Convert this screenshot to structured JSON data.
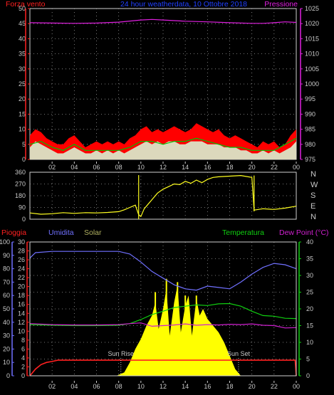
{
  "title": "24 hour weatherdata, 10 Ottobre 2018",
  "colors": {
    "wind": "#ff0000",
    "gust": "#ffffff",
    "wind_avg": "#00c000",
    "pressure": "#e020e0",
    "direction": "#ffff20",
    "rain": "#ff2020",
    "humidity": "#7070ff",
    "solar": "#ffff00",
    "temperature": "#10d010",
    "dewpoint": "#d020d0",
    "title": "#2040ff"
  },
  "x_ticks": [
    "02",
    "04",
    "06",
    "08",
    "10",
    "12",
    "14",
    "16",
    "18",
    "20",
    "22",
    "00"
  ],
  "chart_data": [
    {
      "type": "area",
      "id": "wind-pressure",
      "left_label": "Forza vento",
      "right_label": "Pressione",
      "x_range": [
        0,
        24
      ],
      "left_ticks": [
        "0",
        "5",
        "10",
        "15",
        "20",
        "25",
        "30",
        "35",
        "40",
        "45",
        "50"
      ],
      "right_ticks": [
        "975",
        "980",
        "985",
        "990",
        "995",
        "1000",
        "1005",
        "1010",
        "1015",
        "1020",
        "1025"
      ],
      "ylim_left": [
        0,
        50
      ],
      "ylim_right": [
        975,
        1025
      ],
      "grid": true,
      "series": [
        {
          "key": "wind",
          "x": [
            0,
            0.5,
            1,
            1.5,
            2,
            2.5,
            3,
            3.5,
            4,
            4.5,
            5,
            5.5,
            6,
            6.5,
            7,
            7.5,
            8,
            8.5,
            9,
            9.5,
            10,
            10.5,
            11,
            11.5,
            12,
            12.5,
            13,
            13.5,
            14,
            14.5,
            15,
            15.5,
            16,
            16.5,
            17,
            17.5,
            18,
            18.5,
            19,
            19.5,
            20,
            20.5,
            21,
            21.5,
            22,
            22.5,
            23,
            23.5,
            24
          ],
          "values": [
            8,
            10,
            9,
            7,
            6,
            5,
            5,
            7,
            8,
            6,
            4,
            5,
            6,
            5,
            6,
            5,
            6,
            5,
            7,
            8,
            10,
            11,
            9,
            10,
            9,
            10,
            11,
            10,
            9,
            10,
            12,
            11,
            10,
            9,
            10,
            8,
            7,
            8,
            7,
            6,
            5,
            4,
            6,
            5,
            6,
            4,
            5,
            8,
            10
          ]
        },
        {
          "key": "gust",
          "x": [
            0,
            0.5,
            1,
            1.5,
            2,
            2.5,
            3,
            3.5,
            4,
            4.5,
            5,
            5.5,
            6,
            6.5,
            7,
            7.5,
            8,
            8.5,
            9,
            9.5,
            10,
            10.5,
            11,
            11.5,
            12,
            12.5,
            13,
            13.5,
            14,
            14.5,
            15,
            15.5,
            16,
            16.5,
            17,
            17.5,
            18,
            18.5,
            19,
            19.5,
            20,
            20.5,
            21,
            21.5,
            22,
            22.5,
            23,
            23.5,
            24
          ],
          "values": [
            4,
            6,
            5,
            4,
            3,
            2,
            2,
            3,
            4,
            3,
            2,
            2,
            3,
            2,
            3,
            2,
            3,
            2,
            3,
            4,
            5,
            6,
            5,
            6,
            5,
            6,
            6,
            5,
            5,
            6,
            6,
            6,
            5,
            5,
            5,
            4,
            4,
            4,
            3,
            3,
            2,
            2,
            3,
            2,
            3,
            2,
            3,
            4,
            6
          ]
        },
        {
          "key": "wind_avg",
          "x": [
            0,
            1,
            2,
            3,
            4,
            5,
            6,
            7,
            8,
            9,
            10,
            11,
            12,
            13,
            14,
            15,
            16,
            17,
            18,
            19,
            20,
            21,
            22,
            23,
            24
          ],
          "values": [
            5,
            6,
            4,
            3,
            5,
            3,
            3,
            3,
            3,
            4,
            6,
            6,
            5,
            6,
            6,
            7,
            6,
            5,
            4,
            4,
            3,
            3,
            3,
            5,
            7
          ]
        },
        {
          "key": "pressure",
          "axis": "right",
          "x": [
            0,
            2,
            4,
            6,
            8,
            10,
            11,
            12,
            14,
            16,
            18,
            20,
            21,
            22,
            23,
            24
          ],
          "values": [
            1020.3,
            1020.2,
            1020.1,
            1020.2,
            1020.5,
            1021.2,
            1021.4,
            1021.2,
            1020.8,
            1020.6,
            1020.3,
            1020.1,
            1020.1,
            1020.3,
            1020.6,
            1020.4
          ]
        }
      ]
    },
    {
      "type": "line",
      "id": "wind-direction",
      "x_range": [
        0,
        24
      ],
      "left_ticks": [
        "0",
        "90",
        "180",
        "270",
        "360"
      ],
      "right_ticks": [
        "N",
        "W",
        "S",
        "E",
        "N"
      ],
      "ylim": [
        0,
        360
      ],
      "series": [
        {
          "key": "direction",
          "x": [
            0,
            1,
            2,
            3,
            4,
            5,
            6,
            7,
            8,
            8.5,
            9,
            9.5,
            9.8,
            10,
            10.3,
            10.6,
            11,
            11.5,
            12,
            12.5,
            13,
            13.5,
            14,
            14.5,
            15,
            15.5,
            16,
            16.5,
            17,
            18,
            19,
            20,
            20.2,
            21,
            22,
            23,
            24
          ],
          "values": [
            48,
            38,
            42,
            50,
            45,
            50,
            48,
            52,
            58,
            72,
            90,
            108,
            35,
            20,
            80,
            110,
            150,
            200,
            230,
            250,
            270,
            265,
            290,
            275,
            300,
            280,
            305,
            320,
            325,
            330,
            335,
            320,
            70,
            80,
            75,
            85,
            100
          ]
        }
      ]
    },
    {
      "type": "line",
      "id": "rain-humidity-solar-temperature",
      "labels": {
        "rain": "Pioggia",
        "humidity": "Umidita",
        "solar": "Solar",
        "temperature": "Temperatura",
        "dewpoint": "Dew Point (°C)"
      },
      "x_range": [
        0,
        24
      ],
      "humidity_ticks": [
        "0",
        "10",
        "20",
        "30",
        "40",
        "50",
        "60",
        "70",
        "80",
        "90",
        "100"
      ],
      "rain_ticks": [
        "0",
        "2",
        "4",
        "6",
        "8",
        "10",
        "12",
        "14",
        "16",
        "18",
        "20",
        "22",
        "24",
        "26",
        "28",
        "30"
      ],
      "right_ticks": [
        "0",
        "5",
        "10",
        "15",
        "20",
        "25",
        "30",
        "35",
        "40"
      ],
      "ylim_humidity": [
        0,
        100
      ],
      "ylim_rain": [
        0,
        30
      ],
      "ylim_right": [
        0,
        40
      ],
      "annotations": [
        {
          "text": "Sun Rise",
          "x": 8.2
        },
        {
          "text": "Sun Set",
          "x": 18.8
        }
      ],
      "series": [
        {
          "key": "rain",
          "x": [
            0,
            0.5,
            1,
            1.5,
            2,
            2.5,
            3,
            6,
            9,
            12,
            15,
            18,
            21,
            23.9,
            24
          ],
          "values": [
            0,
            1.5,
            2.5,
            3,
            3.2,
            3.5,
            3.5,
            3.5,
            3.5,
            3.5,
            3.5,
            3.5,
            3.5,
            3.5,
            0
          ]
        },
        {
          "key": "humidity",
          "x": [
            0,
            0.5,
            2,
            4,
            6,
            8,
            9,
            10,
            11,
            12,
            13,
            14,
            15,
            16,
            17,
            18,
            19,
            20,
            21,
            22,
            23,
            24
          ],
          "values": [
            88,
            92,
            93,
            93,
            93,
            93,
            91,
            85,
            78,
            73,
            68,
            65,
            64,
            67,
            66,
            65,
            70,
            76,
            81,
            84,
            83,
            80
          ]
        },
        {
          "key": "temperature",
          "x": [
            0,
            2,
            4,
            6,
            8,
            9,
            10,
            11,
            12,
            13,
            14,
            15,
            16,
            17,
            18,
            19,
            20,
            21,
            22,
            23,
            24
          ],
          "values": [
            15.3,
            15.1,
            15,
            15,
            15.1,
            15.6,
            16.8,
            18.3,
            19.3,
            20.4,
            20.8,
            21.2,
            21,
            21.5,
            21.6,
            20.8,
            19.3,
            18,
            17.8,
            17.2,
            17.1
          ]
        },
        {
          "key": "dewpoint",
          "x": [
            0,
            2,
            4,
            6,
            8,
            9,
            10,
            11,
            12,
            13,
            14,
            15,
            16,
            17,
            18,
            19,
            20,
            21,
            22,
            23,
            24
          ],
          "values": [
            15.6,
            15.3,
            15.2,
            15.2,
            15.3,
            15.6,
            15.8,
            14.8,
            15,
            15.2,
            15.5,
            15.1,
            15.3,
            15.2,
            15.4,
            15.3,
            15.5,
            15.1,
            15,
            14.3,
            14.4
          ]
        },
        {
          "key": "solar",
          "axis": "right",
          "x": [
            7.8,
            8.5,
            9,
            9.5,
            10,
            10.5,
            11,
            11.3,
            11.6,
            12,
            12.3,
            12.6,
            13,
            13.3,
            13.6,
            14,
            14.3,
            14.6,
            15,
            15.3,
            15.6,
            16,
            16.5,
            17,
            17.5,
            18,
            18.5,
            19
          ],
          "values": [
            0,
            1,
            4,
            8,
            11,
            15,
            18,
            22,
            14,
            20,
            26,
            12,
            22,
            27,
            13,
            21,
            24,
            12,
            23,
            18,
            20,
            17,
            15,
            13,
            10,
            6,
            2,
            0
          ]
        }
      ]
    }
  ]
}
